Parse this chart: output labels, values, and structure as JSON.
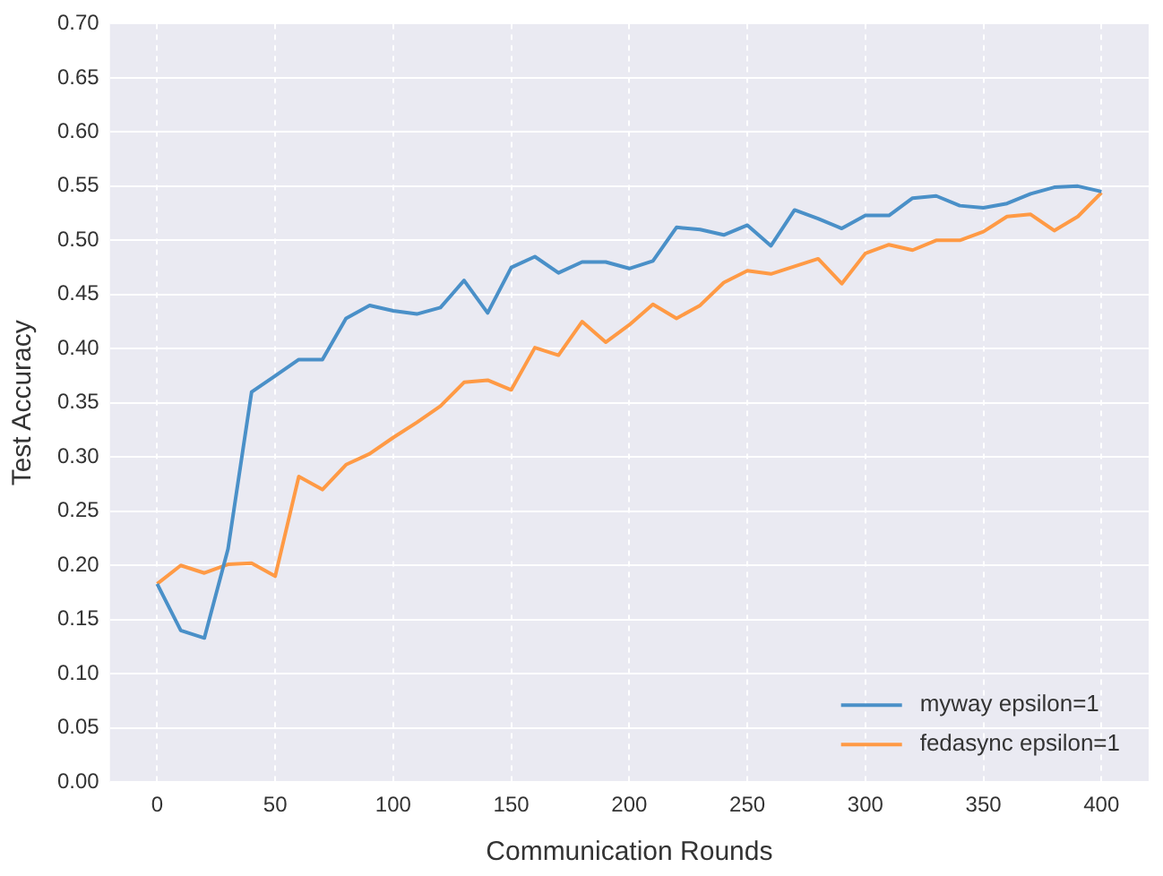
{
  "chart_data": {
    "type": "line",
    "xlabel": "Communication Rounds",
    "ylabel": "Test Accuracy",
    "x": [
      0,
      10,
      20,
      30,
      40,
      50,
      60,
      70,
      80,
      90,
      100,
      110,
      120,
      130,
      140,
      150,
      160,
      170,
      180,
      190,
      200,
      210,
      220,
      230,
      240,
      250,
      260,
      270,
      280,
      290,
      300,
      310,
      320,
      330,
      340,
      350,
      360,
      370,
      380,
      390,
      400
    ],
    "series": [
      {
        "name": "myway epsilon=1",
        "color": "#4a90c8",
        "values": [
          0.183,
          0.14,
          0.133,
          0.215,
          0.36,
          0.375,
          0.39,
          0.39,
          0.428,
          0.44,
          0.435,
          0.432,
          0.438,
          0.463,
          0.433,
          0.475,
          0.485,
          0.47,
          0.48,
          0.48,
          0.474,
          0.481,
          0.512,
          0.51,
          0.505,
          0.514,
          0.495,
          0.528,
          0.52,
          0.511,
          0.523,
          0.523,
          0.539,
          0.541,
          0.532,
          0.53,
          0.534,
          0.543,
          0.549,
          0.55,
          0.545
        ]
      },
      {
        "name": "fedasync epsilon=1",
        "color": "#ff9a45",
        "values": [
          0.183,
          0.2,
          0.193,
          0.201,
          0.202,
          0.19,
          0.282,
          0.27,
          0.293,
          0.303,
          0.318,
          0.332,
          0.347,
          0.369,
          0.371,
          0.362,
          0.401,
          0.394,
          0.425,
          0.406,
          0.422,
          0.441,
          0.428,
          0.44,
          0.461,
          0.472,
          0.469,
          0.476,
          0.483,
          0.46,
          0.488,
          0.496,
          0.491,
          0.5,
          0.5,
          0.508,
          0.522,
          0.524,
          0.509,
          0.522,
          0.544
        ]
      }
    ],
    "xlim": [
      -20,
      420
    ],
    "xticks": [
      0,
      50,
      100,
      150,
      200,
      250,
      300,
      350,
      400
    ],
    "ylim": [
      0,
      0.7
    ],
    "yticks": [
      {
        "value": 0,
        "label": "0.00"
      },
      {
        "value": 0.05,
        "label": "0.05"
      },
      {
        "value": 0.1,
        "label": "0.10"
      },
      {
        "value": 0.15,
        "label": "0.15"
      },
      {
        "value": 0.2,
        "label": "0.20"
      },
      {
        "value": 0.25,
        "label": "0.25"
      },
      {
        "value": 0.3,
        "label": "0.30"
      },
      {
        "value": 0.35,
        "label": "0.35"
      },
      {
        "value": 0.4,
        "label": "0.40"
      },
      {
        "value": 0.45,
        "label": "0.45"
      },
      {
        "value": 0.5,
        "label": "0.50"
      },
      {
        "value": 0.55,
        "label": "0.55"
      },
      {
        "value": 0.6,
        "label": "0.60"
      },
      {
        "value": 0.65,
        "label": "0.65"
      },
      {
        "value": 0.7,
        "label": "0.70"
      }
    ],
    "grid": true,
    "legend": "bottom right",
    "marker": "none",
    "line_style": "solid"
  }
}
